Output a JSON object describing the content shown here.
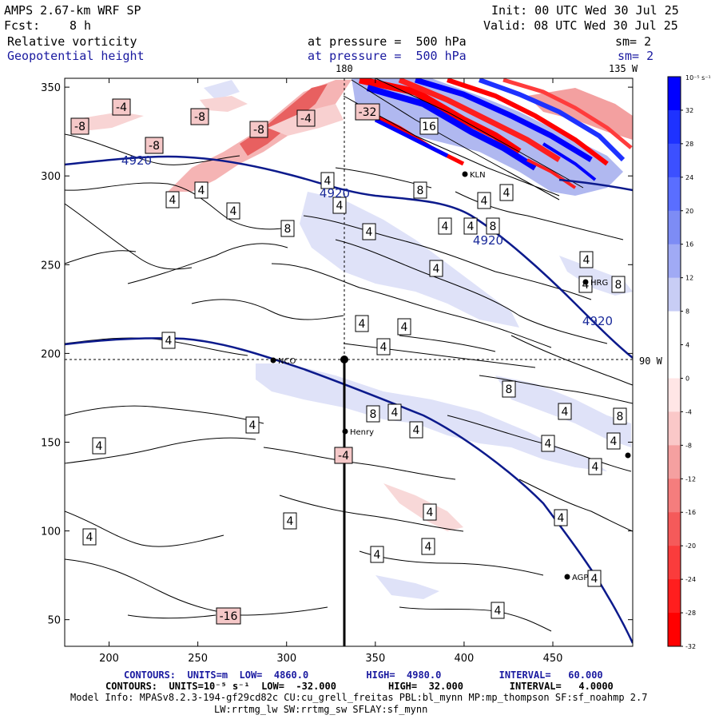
{
  "header": {
    "title": "AMPS 2.67-km WRF SP",
    "fcst_label": "Fcst:",
    "fcst_value": "8 h",
    "init": "Init: 00 UTC Wed 30 Jul 25",
    "valid": "Valid: 08 UTC Wed 30 Jul 25",
    "field1": "Relative vorticity",
    "field2": "Geopotential height",
    "pressure1": "at pressure =  500 hPa",
    "pressure2": "at pressure =  500 hPa",
    "sm1": "sm= 2",
    "sm2": "sm= 2",
    "lon180": "180",
    "lon135": "135 W",
    "lon90": "90 W"
  },
  "footer": {
    "line1": "CONTOURS:  UNITS=m  LOW=  4860.0          HIGH=  4980.0          INTERVAL=   60.000",
    "line2": "CONTOURS:  UNITS=10⁻⁵ s⁻¹  LOW=  -32.000         HIGH=  32.000        INTERVAL=   4.0000",
    "line3": "Model Info: MPASv8.2.3-194-gf29cd82c CU:cu_grell_freitas PBL:bl_mynn MP:mp_thompson SF:sf_noahmp 2.7",
    "line4": "LW:rrtmg_lw SW:rrtmg_sw SFLAY:sf_mynn"
  },
  "colorbar": {
    "unit": "10⁻⁵ s⁻¹",
    "labels": [
      "32",
      "28",
      "24",
      "20",
      "16",
      "12",
      "8",
      "4",
      "0",
      "-4",
      "-8",
      "-12",
      "-16",
      "-20",
      "-24",
      "-28",
      "-32"
    ],
    "colors": [
      "#0000ff",
      "#1e32ff",
      "#3c50ff",
      "#5a6eff",
      "#7d8cf5",
      "#a0aaf5",
      "#c8cdf5",
      "#ffffff",
      "#ffffff",
      "#ffe6e6",
      "#fac8c8",
      "#f5a0a0",
      "#f57d7d",
      "#f55a5a",
      "#fa3c3c",
      "#ff1e1e",
      "#ff0000"
    ]
  },
  "stations": [
    "NCO",
    "Henry",
    "KLN",
    "HRG",
    "AGP"
  ],
  "chart_data": {
    "type": "heatmap",
    "x_ticks": [
      200,
      250,
      300,
      350,
      400,
      450
    ],
    "y_ticks": [
      50,
      100,
      150,
      200,
      250,
      300,
      350
    ],
    "xlim": [
      175,
      495
    ],
    "ylim": [
      35,
      355
    ],
    "height_contours": {
      "values_m": [
        4920
      ],
      "labels": [
        "4920",
        "4920",
        "4920",
        "4920"
      ]
    },
    "vorticity_contour_labels": [
      "-4",
      "-8",
      "-8",
      "-8",
      "-4",
      "-8",
      "4",
      "4",
      "4",
      "4",
      "4",
      "8",
      "4",
      "8",
      "4",
      "4",
      "4",
      "4",
      "8",
      "4",
      "4",
      "8",
      "4",
      "4",
      "4",
      "4",
      "8",
      "4",
      "8",
      "4",
      "4",
      "4",
      "8",
      "4",
      "4",
      "4",
      "4",
      "-4",
      "4",
      "4",
      "4",
      "4",
      "4",
      "4",
      "4",
      "4",
      "4",
      "-16",
      "-32",
      "16"
    ]
  }
}
